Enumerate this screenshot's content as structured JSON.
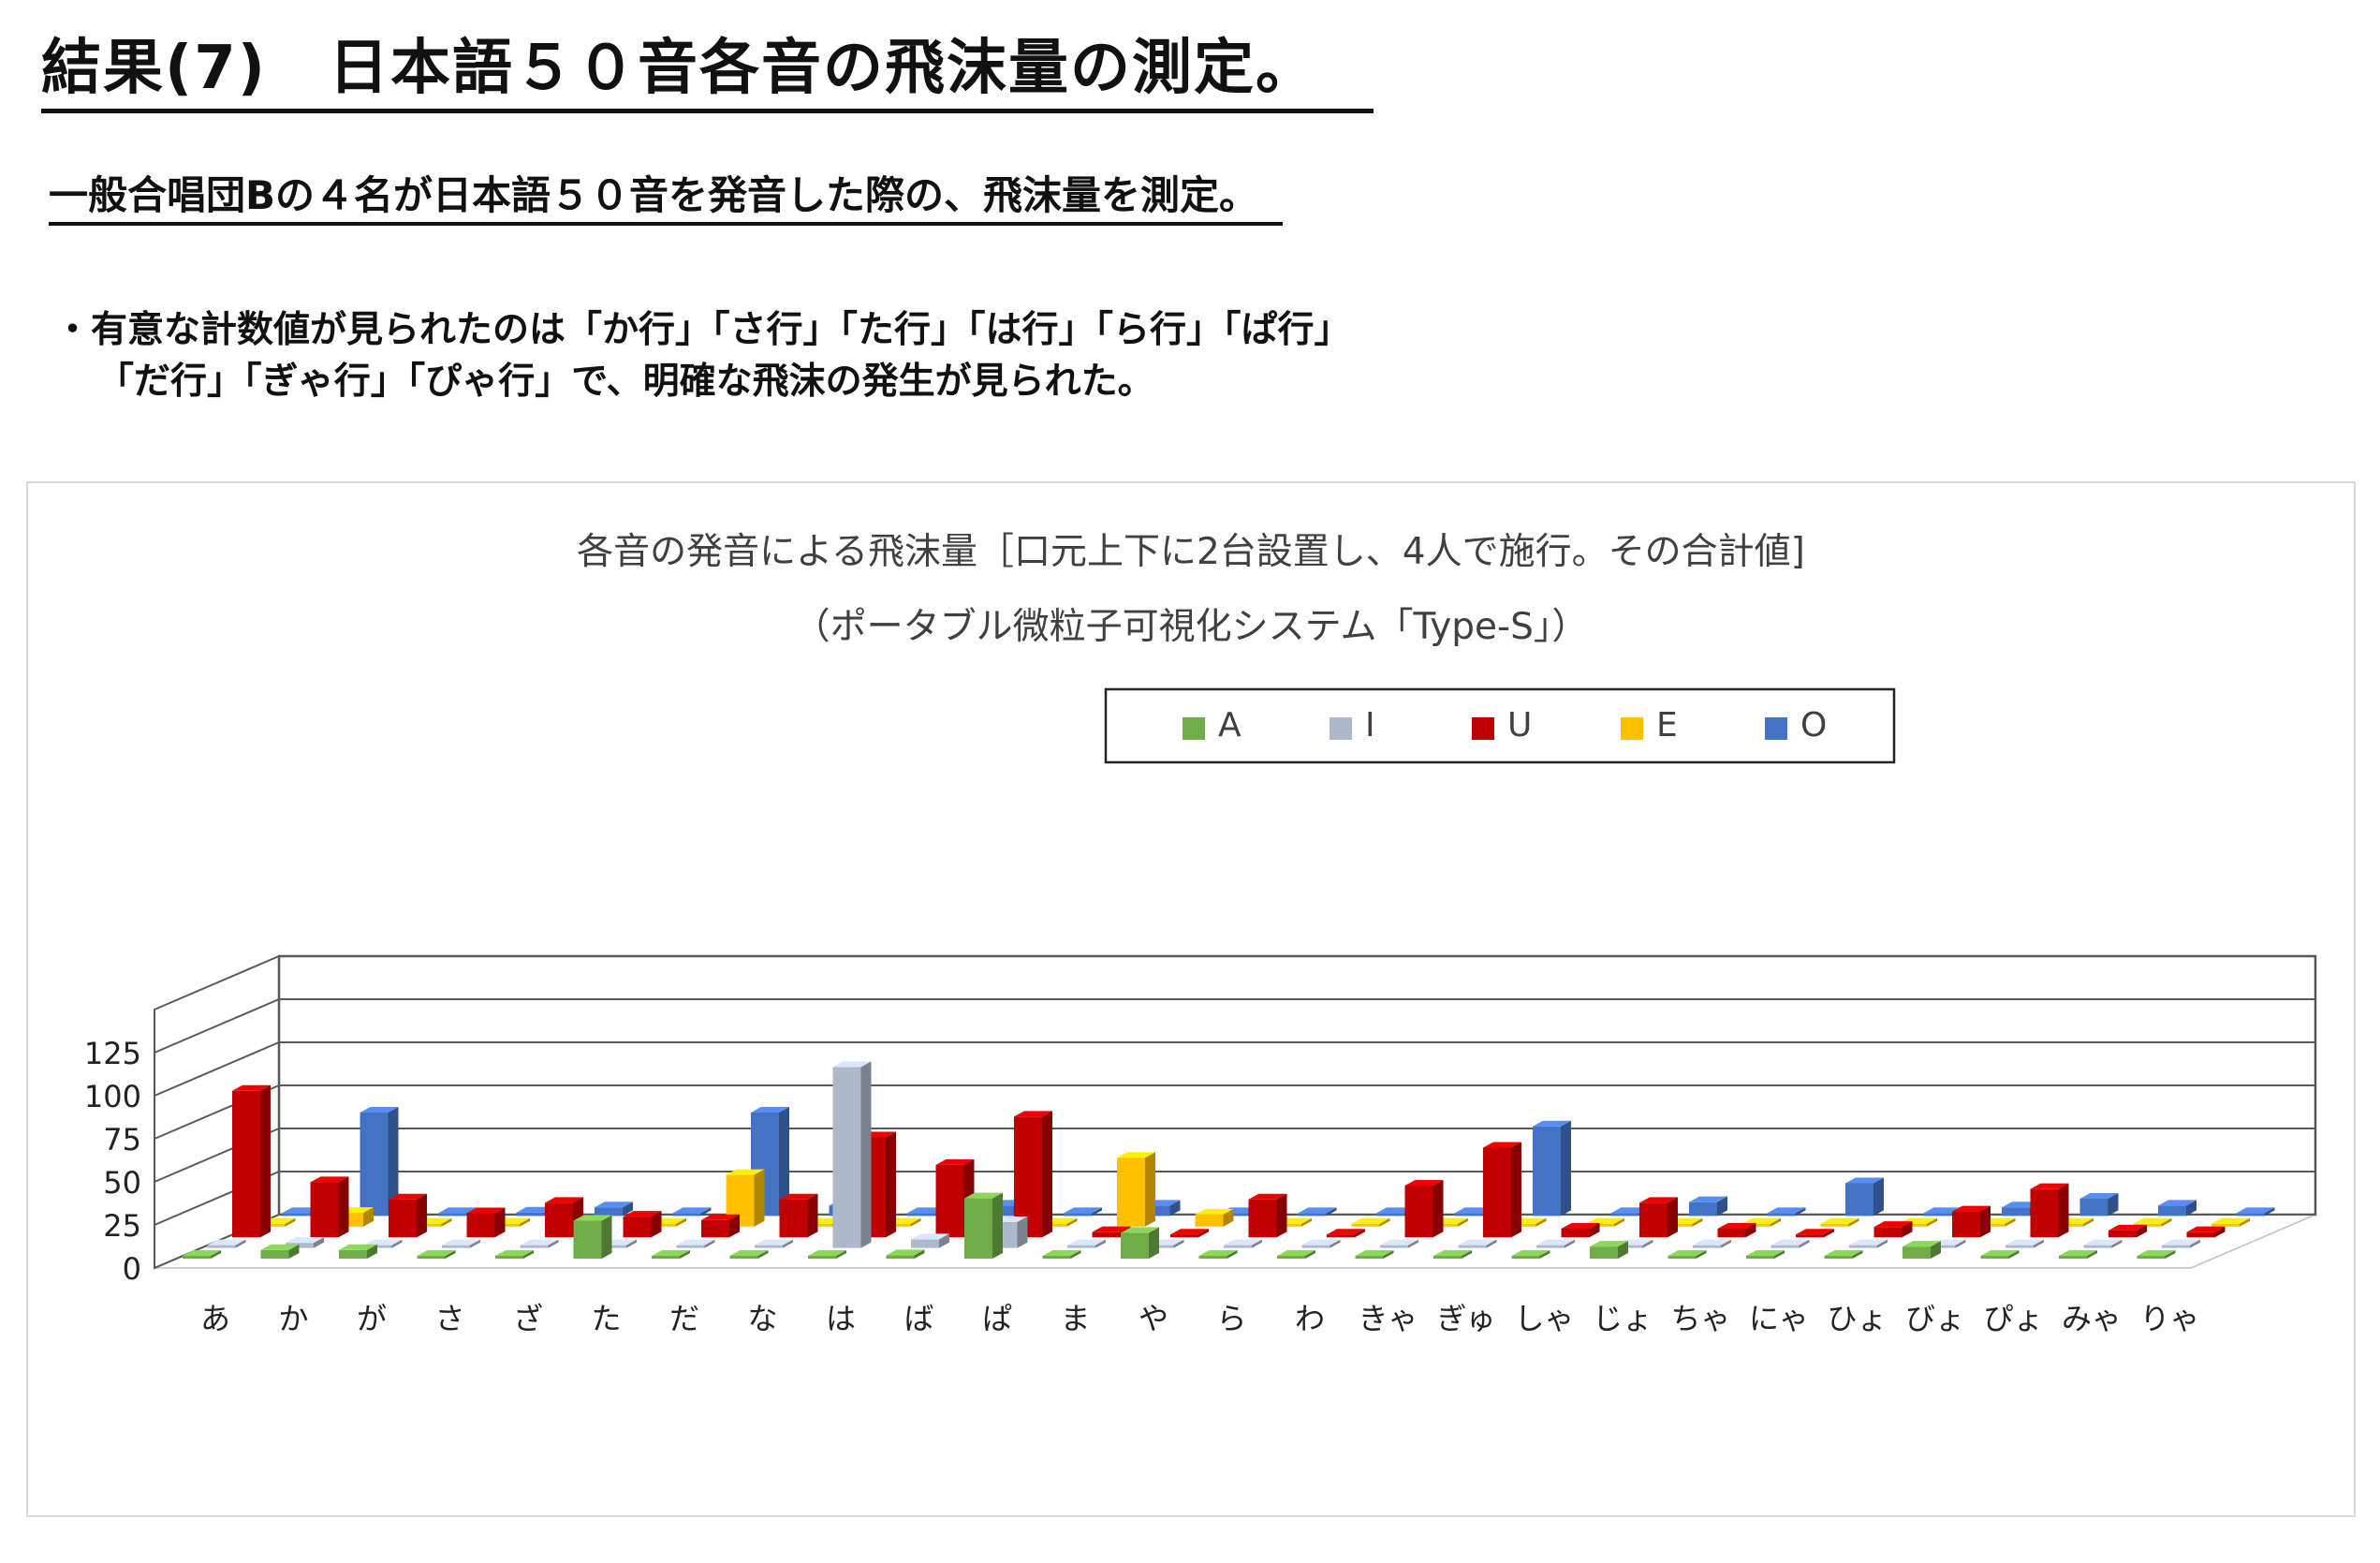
{
  "header": {
    "title": "結果(7)　日本語５０音各音の飛沫量の測定。",
    "subtitle": "一般合唱団Bの４名が日本語５０音を発音した際の、飛沫量を測定。",
    "note_line1": "・有意な計数値が見られたのは「か行」「さ行」「た行」「は行」「ら行」「ぱ行」",
    "note_line2": "「だ行」「ぎゃ行」「ぴゃ行」で、明確な飛沫の発生が見られた。"
  },
  "colors": {
    "A": "#70ad47",
    "I": "#adb9ca",
    "U": "#c00000",
    "E": "#ffc000",
    "O": "#4472c4"
  },
  "chart_data": {
    "type": "bar",
    "title": "各音の発音による飛沫量［口元上下に2台設置し、4人で施行。その合計値]",
    "subtitle": "（ポータブル微粒子可視化システム「Type-S」）",
    "categories": [
      "あ",
      "か",
      "が",
      "さ",
      "ざ",
      "た",
      "だ",
      "な",
      "は",
      "ば",
      "ぱ",
      "ま",
      "や",
      "ら",
      "わ",
      "きゃ",
      "ぎゅ",
      "しゃ",
      "じょ",
      "ちゃ",
      "にゃ",
      "ひょ",
      "びょ",
      "ぴょ",
      "みゃ",
      "りゃ"
    ],
    "series": [
      {
        "name": "A",
        "values": [
          0,
          5,
          5,
          0,
          0,
          22,
          0,
          0,
          0,
          2,
          35,
          0,
          15,
          0,
          0,
          0,
          0,
          0,
          7,
          0,
          0,
          0,
          7,
          0,
          0,
          0
        ]
      },
      {
        "name": "I",
        "values": [
          0,
          3,
          0,
          0,
          0,
          0,
          0,
          0,
          105,
          5,
          15,
          0,
          0,
          0,
          0,
          0,
          0,
          0,
          0,
          0,
          0,
          0,
          0,
          0,
          0,
          0
        ]
      },
      {
        "name": "U",
        "values": [
          85,
          32,
          22,
          14,
          20,
          12,
          10,
          22,
          58,
          42,
          70,
          3,
          0,
          22,
          0,
          30,
          52,
          5,
          20,
          5,
          0,
          6,
          15,
          28,
          4,
          3
        ]
      },
      {
        "name": "E",
        "values": [
          0,
          8,
          0,
          0,
          0,
          0,
          30,
          0,
          0,
          0,
          0,
          40,
          7,
          0,
          0,
          0,
          0,
          0,
          0,
          0,
          0,
          0,
          0,
          0,
          0,
          0
        ]
      },
      {
        "name": "O",
        "values": [
          0,
          60,
          0,
          2,
          5,
          0,
          60,
          6,
          0,
          6,
          0,
          6,
          0,
          0,
          0,
          0,
          52,
          0,
          8,
          0,
          19,
          0,
          5,
          10,
          6,
          0
        ]
      }
    ],
    "yticks": [
      "125",
      "100",
      "75",
      "50",
      "25",
      "0"
    ],
    "ylim": [
      0,
      150
    ],
    "legend": [
      "A",
      "I",
      "U",
      "E",
      "O"
    ],
    "legend_position": "top",
    "grid": true
  }
}
